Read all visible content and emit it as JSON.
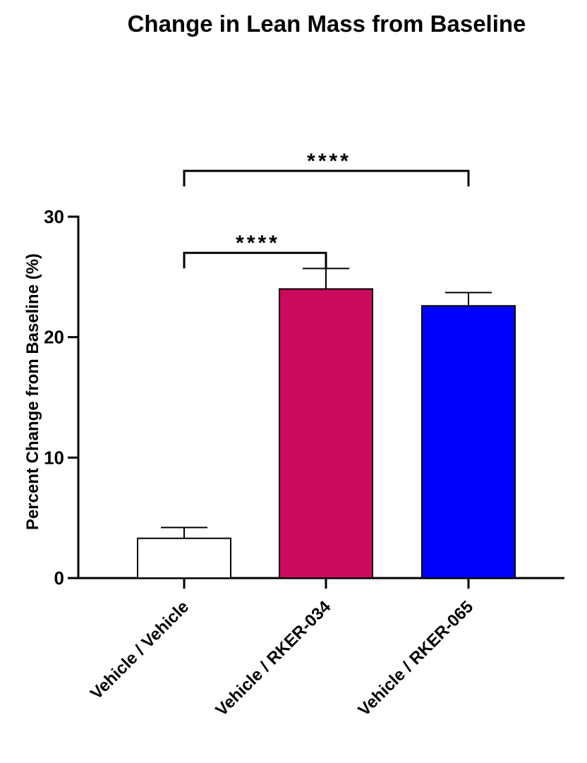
{
  "chart_data": {
    "type": "bar",
    "title": "Change in Lean Mass from Baseline",
    "xlabel": "",
    "ylabel": "Percent Change from Baseline (%)",
    "ylim": [
      0,
      30
    ],
    "yticks": [
      0,
      10,
      20,
      30
    ],
    "categories": [
      "Vehicle / Vehicle",
      "Vehicle / RKER-034",
      "Vehicle / RKER-065"
    ],
    "values": [
      3.3,
      24.0,
      22.6
    ],
    "error_upper": [
      0.9,
      1.7,
      1.1
    ],
    "colors": [
      "#ffffff",
      "#cc0a5c",
      "#0000ff"
    ],
    "significance": [
      {
        "from": 0,
        "to": 1,
        "label": "****",
        "level": 27.0
      },
      {
        "from": 0,
        "to": 2,
        "label": "****",
        "level": 33.8
      }
    ],
    "grid": false,
    "legend": "none"
  }
}
